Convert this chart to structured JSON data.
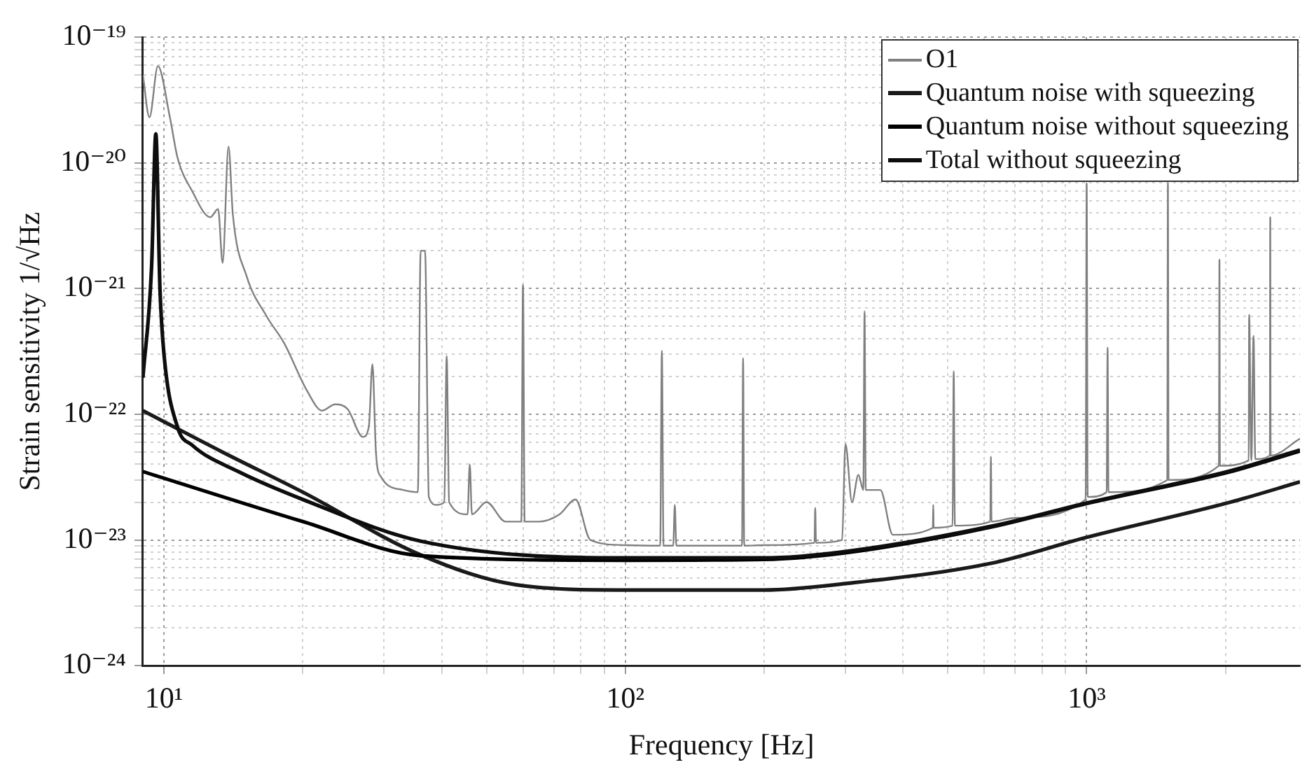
{
  "chart_data": {
    "type": "line",
    "xlabel": "Frequency [Hz]",
    "ylabel": "Strain sensitivity 1/√Hz",
    "log": "xy",
    "grid": true,
    "legend": "top right",
    "marker": "none",
    "line_style": "solid",
    "xlim": [
      9,
      2900
    ],
    "ylim": [
      1e-24,
      1e-19
    ],
    "xticks": [
      {
        "value": 10,
        "label": "10¹"
      },
      {
        "value": 20,
        "label": null
      },
      {
        "value": 30,
        "label": null
      },
      {
        "value": 40,
        "label": null
      },
      {
        "value": 50,
        "label": null
      },
      {
        "value": 60,
        "label": null
      },
      {
        "value": 70,
        "label": null
      },
      {
        "value": 80,
        "label": null
      },
      {
        "value": 90,
        "label": null
      },
      {
        "value": 100,
        "label": "10²"
      },
      {
        "value": 200,
        "label": null
      },
      {
        "value": 300,
        "label": null
      },
      {
        "value": 400,
        "label": null
      },
      {
        "value": 500,
        "label": null
      },
      {
        "value": 600,
        "label": null
      },
      {
        "value": 700,
        "label": null
      },
      {
        "value": 800,
        "label": null
      },
      {
        "value": 900,
        "label": null
      },
      {
        "value": 1000,
        "label": "10³"
      },
      {
        "value": 2000,
        "label": null
      }
    ],
    "yticks": [
      {
        "value": 1e-24,
        "label": "10⁻²⁴"
      },
      {
        "value": 2e-24,
        "label": null
      },
      {
        "value": 3e-24,
        "label": null
      },
      {
        "value": 4e-24,
        "label": null
      },
      {
        "value": 5e-24,
        "label": null
      },
      {
        "value": 6e-24,
        "label": null
      },
      {
        "value": 7e-24,
        "label": null
      },
      {
        "value": 8e-24,
        "label": null
      },
      {
        "value": 9e-24,
        "label": null
      },
      {
        "value": 1e-23,
        "label": "10⁻²³"
      },
      {
        "value": 2e-23,
        "label": null
      },
      {
        "value": 3e-23,
        "label": null
      },
      {
        "value": 4e-23,
        "label": null
      },
      {
        "value": 5e-23,
        "label": null
      },
      {
        "value": 6e-23,
        "label": null
      },
      {
        "value": 7e-23,
        "label": null
      },
      {
        "value": 8e-23,
        "label": null
      },
      {
        "value": 9e-23,
        "label": null
      },
      {
        "value": 1e-22,
        "label": "10⁻²²"
      },
      {
        "value": 2e-22,
        "label": null
      },
      {
        "value": 3e-22,
        "label": null
      },
      {
        "value": 4e-22,
        "label": null
      },
      {
        "value": 5e-22,
        "label": null
      },
      {
        "value": 6e-22,
        "label": null
      },
      {
        "value": 7e-22,
        "label": null
      },
      {
        "value": 8e-22,
        "label": null
      },
      {
        "value": 9e-22,
        "label": null
      },
      {
        "value": 1e-21,
        "label": "10⁻²¹"
      },
      {
        "value": 2e-21,
        "label": null
      },
      {
        "value": 3e-21,
        "label": null
      },
      {
        "value": 4e-21,
        "label": null
      },
      {
        "value": 5e-21,
        "label": null
      },
      {
        "value": 6e-21,
        "label": null
      },
      {
        "value": 7e-21,
        "label": null
      },
      {
        "value": 8e-21,
        "label": null
      },
      {
        "value": 9e-21,
        "label": null
      },
      {
        "value": 1e-20,
        "label": "10⁻²⁰"
      },
      {
        "value": 2e-20,
        "label": null
      },
      {
        "value": 3e-20,
        "label": null
      },
      {
        "value": 4e-20,
        "label": null
      },
      {
        "value": 5e-20,
        "label": null
      },
      {
        "value": 6e-20,
        "label": null
      },
      {
        "value": 7e-20,
        "label": null
      },
      {
        "value": 8e-20,
        "label": null
      },
      {
        "value": 9e-20,
        "label": null
      },
      {
        "value": 1e-19,
        "label": "10⁻¹⁹"
      }
    ],
    "series": [
      {
        "name": "O1",
        "color": "#808080",
        "x": [
          9,
          9.3,
          9.7,
          10.3,
          10.7,
          11.5,
          12.6,
          13.1,
          13.4,
          13.8,
          14.1,
          15.1,
          16.7,
          18.2,
          20.5,
          22,
          23.5,
          25,
          27,
          27.8,
          28.3,
          28.8,
          29.5,
          33,
          35.5,
          36,
          36.8,
          37.5,
          39,
          40.5,
          41,
          41.5,
          45.5,
          46,
          46.5,
          50,
          55,
          59.5,
          60,
          60.5,
          65,
          72,
          78,
          84,
          100,
          119,
          120,
          121,
          127,
          128,
          129,
          179,
          180,
          181,
          200,
          257,
          258,
          259,
          295,
          300,
          310,
          320,
          328,
          330,
          332,
          357,
          380,
          464,
          465,
          466,
          512,
          515,
          518,
          618,
          620,
          622,
          700,
          995,
          1000,
          1005,
          1105,
          1110,
          1115,
          1495,
          1500,
          1505,
          1935,
          1940,
          1945,
          2245,
          2250,
          2275,
          2300,
          2320,
          2495,
          2500,
          2505,
          2900
        ],
        "values": [
          5e-20,
          2.3e-20,
          5.9e-20,
          2.3e-20,
          1.1e-20,
          6e-21,
          3.7e-21,
          4.3e-21,
          1.6e-21,
          1.35e-20,
          3.9e-21,
          1.26e-21,
          6e-22,
          3.7e-22,
          1.5e-22,
          1.07e-22,
          1.2e-22,
          1.1e-22,
          6.6e-23,
          8e-23,
          2.5e-22,
          5e-23,
          3.2e-23,
          2.5e-23,
          2.4e-23,
          2e-21,
          2e-21,
          2.2e-23,
          1.9e-23,
          2e-23,
          2.9e-22,
          2e-23,
          1.6e-23,
          4e-23,
          1.6e-23,
          2e-23,
          1.4e-23,
          1.4e-23,
          1.07e-21,
          1.4e-23,
          1.4e-23,
          1.6e-23,
          2.1e-23,
          1e-23,
          9.1e-24,
          9e-24,
          3.2e-22,
          9e-24,
          9e-24,
          1.9e-23,
          9e-24,
          9e-24,
          2.8e-22,
          9e-24,
          9.1e-24,
          9.5e-24,
          1.8e-23,
          9.5e-24,
          1e-23,
          5.8e-23,
          2e-23,
          3.3e-23,
          2.5e-23,
          6.6e-22,
          2.5e-23,
          2.5e-23,
          1.1e-23,
          1.25e-23,
          1.9e-23,
          1.25e-23,
          1.3e-23,
          2.2e-22,
          1.3e-23,
          1.4e-23,
          4.6e-23,
          1.4e-23,
          1.5e-23,
          2.1e-23,
          6.9e-21,
          2.2e-23,
          2.4e-23,
          3.4e-22,
          2.4e-23,
          3e-23,
          6.9e-21,
          3e-23,
          3.9e-23,
          1.7e-21,
          3.9e-23,
          4.3e-23,
          6.2e-22,
          4.3e-23,
          4.2e-22,
          4.4e-23,
          4.7e-23,
          3.7e-21,
          4.7e-23,
          6.4e-23
        ]
      },
      {
        "name": "Quantum noise with squeezing",
        "color": "#1a1a1a",
        "x": [
          9,
          13.4,
          20,
          36,
          58,
          100,
          200,
          300,
          617,
          1000,
          2050,
          2900
        ],
        "values": [
          1.07e-22,
          5e-23,
          2.4e-23,
          7.6e-24,
          4.4e-24,
          4e-24,
          4e-24,
          4.5e-24,
          6.5e-24,
          1.05e-23,
          2e-23,
          2.9e-23
        ]
      },
      {
        "name": "Quantum noise without squeezing",
        "color": "#000000",
        "x": [
          9,
          20,
          36,
          100,
          200,
          300,
          617,
          1000,
          2050,
          2900
        ],
        "values": [
          3.5e-23,
          1.4e-23,
          7.5e-24,
          6.9e-24,
          7e-24,
          7.9e-24,
          1.26e-23,
          1.95e-23,
          3.5e-23,
          5.1e-23
        ]
      },
      {
        "name": "Total without squeezing",
        "color": "#0d0d0d",
        "x": [
          9,
          9.4,
          9.6,
          9.8,
          10,
          10.7,
          11.5,
          14.5,
          20,
          36,
          100,
          200,
          300,
          617,
          1000,
          2050,
          2900
        ],
        "values": [
          1.95e-22,
          1.5e-21,
          1.7e-20,
          1e-21,
          3e-22,
          7.9e-23,
          5.7e-23,
          3.5e-23,
          2.1e-23,
          9.8e-24,
          7.2e-24,
          7.2e-24,
          8.1e-24,
          1.28e-23,
          1.97e-23,
          3.55e-23,
          5.2e-23
        ]
      }
    ]
  }
}
